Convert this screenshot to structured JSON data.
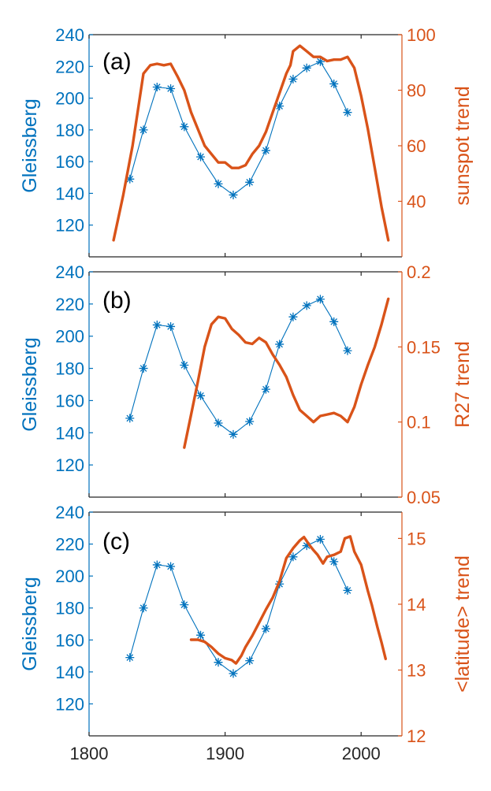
{
  "chart_data": [
    {
      "type": "line",
      "panel_label": "(a)",
      "xlim": [
        1800,
        2030
      ],
      "ylabel_left": "Gleissberg",
      "ylabel_right": "sunspot trend",
      "ylim_left": [
        100,
        240
      ],
      "ylim_right": [
        20,
        100
      ],
      "yticks_left": [
        120,
        140,
        160,
        180,
        200,
        220,
        240
      ],
      "yticks_right": [
        40,
        60,
        80,
        100
      ],
      "yticklabels_left": [
        "120",
        "140",
        "160",
        "180",
        "200",
        "220",
        "240"
      ],
      "yticklabels_right": [
        "40",
        "60",
        "80",
        "100"
      ],
      "series": [
        {
          "name": "Gleissberg",
          "axis": "left",
          "color": "#0072BD",
          "marker": "asterisk",
          "x": [
            1830,
            1840,
            1850,
            1860,
            1870,
            1882,
            1895,
            1906,
            1918,
            1930,
            1940,
            1950,
            1960,
            1970,
            1980,
            1990
          ],
          "y": [
            149,
            180,
            207,
            206,
            182,
            163,
            146,
            139,
            147,
            167,
            195,
            212,
            219,
            223,
            209,
            191
          ]
        },
        {
          "name": "sunspot trend",
          "axis": "right",
          "color": "#D95319",
          "x": [
            1818,
            1825,
            1832,
            1840,
            1845,
            1850,
            1855,
            1860,
            1865,
            1870,
            1875,
            1880,
            1885,
            1890,
            1895,
            1900,
            1905,
            1910,
            1915,
            1920,
            1925,
            1930,
            1935,
            1940,
            1945,
            1948,
            1950,
            1955,
            1960,
            1965,
            1970,
            1975,
            1980,
            1985,
            1990,
            1995,
            2000,
            2005,
            2010,
            2015,
            2020
          ],
          "y": [
            26,
            42,
            60,
            86,
            89,
            89.5,
            89,
            89.5,
            85,
            80,
            72,
            66,
            60,
            57,
            54,
            54,
            52,
            52,
            53,
            57,
            60,
            65,
            72,
            79,
            86,
            89,
            94,
            96,
            94,
            92,
            92,
            90.5,
            91,
            91,
            92,
            88,
            78,
            66,
            52,
            38,
            26
          ]
        }
      ]
    },
    {
      "type": "line",
      "panel_label": "(b)",
      "xlim": [
        1800,
        2030
      ],
      "ylabel_left": "Gleissberg",
      "ylabel_right": "R27 trend",
      "ylim_left": [
        100,
        240
      ],
      "ylim_right": [
        0.05,
        0.2
      ],
      "yticks_left": [
        120,
        140,
        160,
        180,
        200,
        220,
        240
      ],
      "yticks_right": [
        0.05,
        0.1,
        0.15,
        0.2
      ],
      "yticklabels_left": [
        "120",
        "140",
        "160",
        "180",
        "200",
        "220",
        "240"
      ],
      "yticklabels_right": [
        "0.05",
        "0.1",
        "0.15",
        "0.2"
      ],
      "series": [
        {
          "name": "Gleissberg",
          "axis": "left",
          "color": "#0072BD",
          "marker": "asterisk",
          "x": [
            1830,
            1840,
            1850,
            1860,
            1870,
            1882,
            1895,
            1906,
            1918,
            1930,
            1940,
            1950,
            1960,
            1970,
            1980,
            1990
          ],
          "y": [
            149,
            180,
            207,
            206,
            182,
            163,
            146,
            139,
            147,
            167,
            195,
            212,
            219,
            223,
            209,
            191
          ]
        },
        {
          "name": "R27 trend",
          "axis": "right",
          "color": "#D95319",
          "x": [
            1870,
            1875,
            1880,
            1885,
            1890,
            1895,
            1900,
            1905,
            1910,
            1915,
            1920,
            1925,
            1930,
            1935,
            1940,
            1945,
            1950,
            1955,
            1960,
            1965,
            1970,
            1975,
            1980,
            1985,
            1990,
            1995,
            2000,
            2005,
            2010,
            2015,
            2020
          ],
          "y": [
            0.083,
            0.105,
            0.127,
            0.15,
            0.165,
            0.17,
            0.169,
            0.162,
            0.158,
            0.153,
            0.152,
            0.156,
            0.153,
            0.145,
            0.138,
            0.13,
            0.118,
            0.108,
            0.104,
            0.1,
            0.104,
            0.105,
            0.106,
            0.104,
            0.1,
            0.11,
            0.125,
            0.138,
            0.15,
            0.165,
            0.182
          ]
        }
      ]
    },
    {
      "type": "line",
      "panel_label": "(c)",
      "xlim": [
        1800,
        2030
      ],
      "xticks": [
        1800,
        1900,
        2000
      ],
      "xticklabels": [
        "1800",
        "1900",
        "2000"
      ],
      "ylabel_left": "Gleissberg",
      "ylabel_right": "<latitude> trend",
      "ylim_left": [
        100,
        240
      ],
      "ylim_right": [
        12,
        15.4
      ],
      "yticks_left": [
        120,
        140,
        160,
        180,
        200,
        220,
        240
      ],
      "yticks_right": [
        12,
        13,
        14,
        15
      ],
      "yticklabels_left": [
        "120",
        "140",
        "160",
        "180",
        "200",
        "220",
        "240"
      ],
      "yticklabels_right": [
        "12",
        "13",
        "14",
        "15"
      ],
      "series": [
        {
          "name": "Gleissberg",
          "axis": "left",
          "color": "#0072BD",
          "marker": "asterisk",
          "x": [
            1830,
            1840,
            1850,
            1860,
            1870,
            1882,
            1895,
            1906,
            1918,
            1930,
            1940,
            1950,
            1960,
            1970,
            1980,
            1990
          ],
          "y": [
            149,
            180,
            207,
            206,
            182,
            163,
            146,
            139,
            147,
            167,
            195,
            212,
            219,
            223,
            209,
            191
          ]
        },
        {
          "name": "<latitude> trend",
          "axis": "right",
          "color": "#D95319",
          "x": [
            1875,
            1880,
            1885,
            1890,
            1895,
            1900,
            1905,
            1908,
            1912,
            1915,
            1920,
            1925,
            1930,
            1935,
            1940,
            1945,
            1950,
            1955,
            1958,
            1962,
            1965,
            1968,
            1972,
            1975,
            1980,
            1985,
            1988,
            1992,
            1995,
            2000,
            2005,
            2008,
            2012,
            2015,
            2018
          ],
          "y": [
            13.46,
            13.46,
            13.43,
            13.35,
            13.25,
            13.18,
            13.15,
            13.1,
            13.22,
            13.35,
            13.52,
            13.72,
            13.92,
            14.1,
            14.35,
            14.7,
            14.85,
            14.97,
            15.02,
            14.9,
            14.82,
            14.75,
            14.62,
            14.72,
            14.75,
            14.8,
            15.0,
            15.03,
            14.8,
            14.6,
            14.2,
            13.98,
            13.65,
            13.42,
            13.17
          ]
        }
      ]
    }
  ],
  "colors": {
    "left_axis": "#0072BD",
    "right_axis": "#D95319",
    "frame": "#262626"
  }
}
